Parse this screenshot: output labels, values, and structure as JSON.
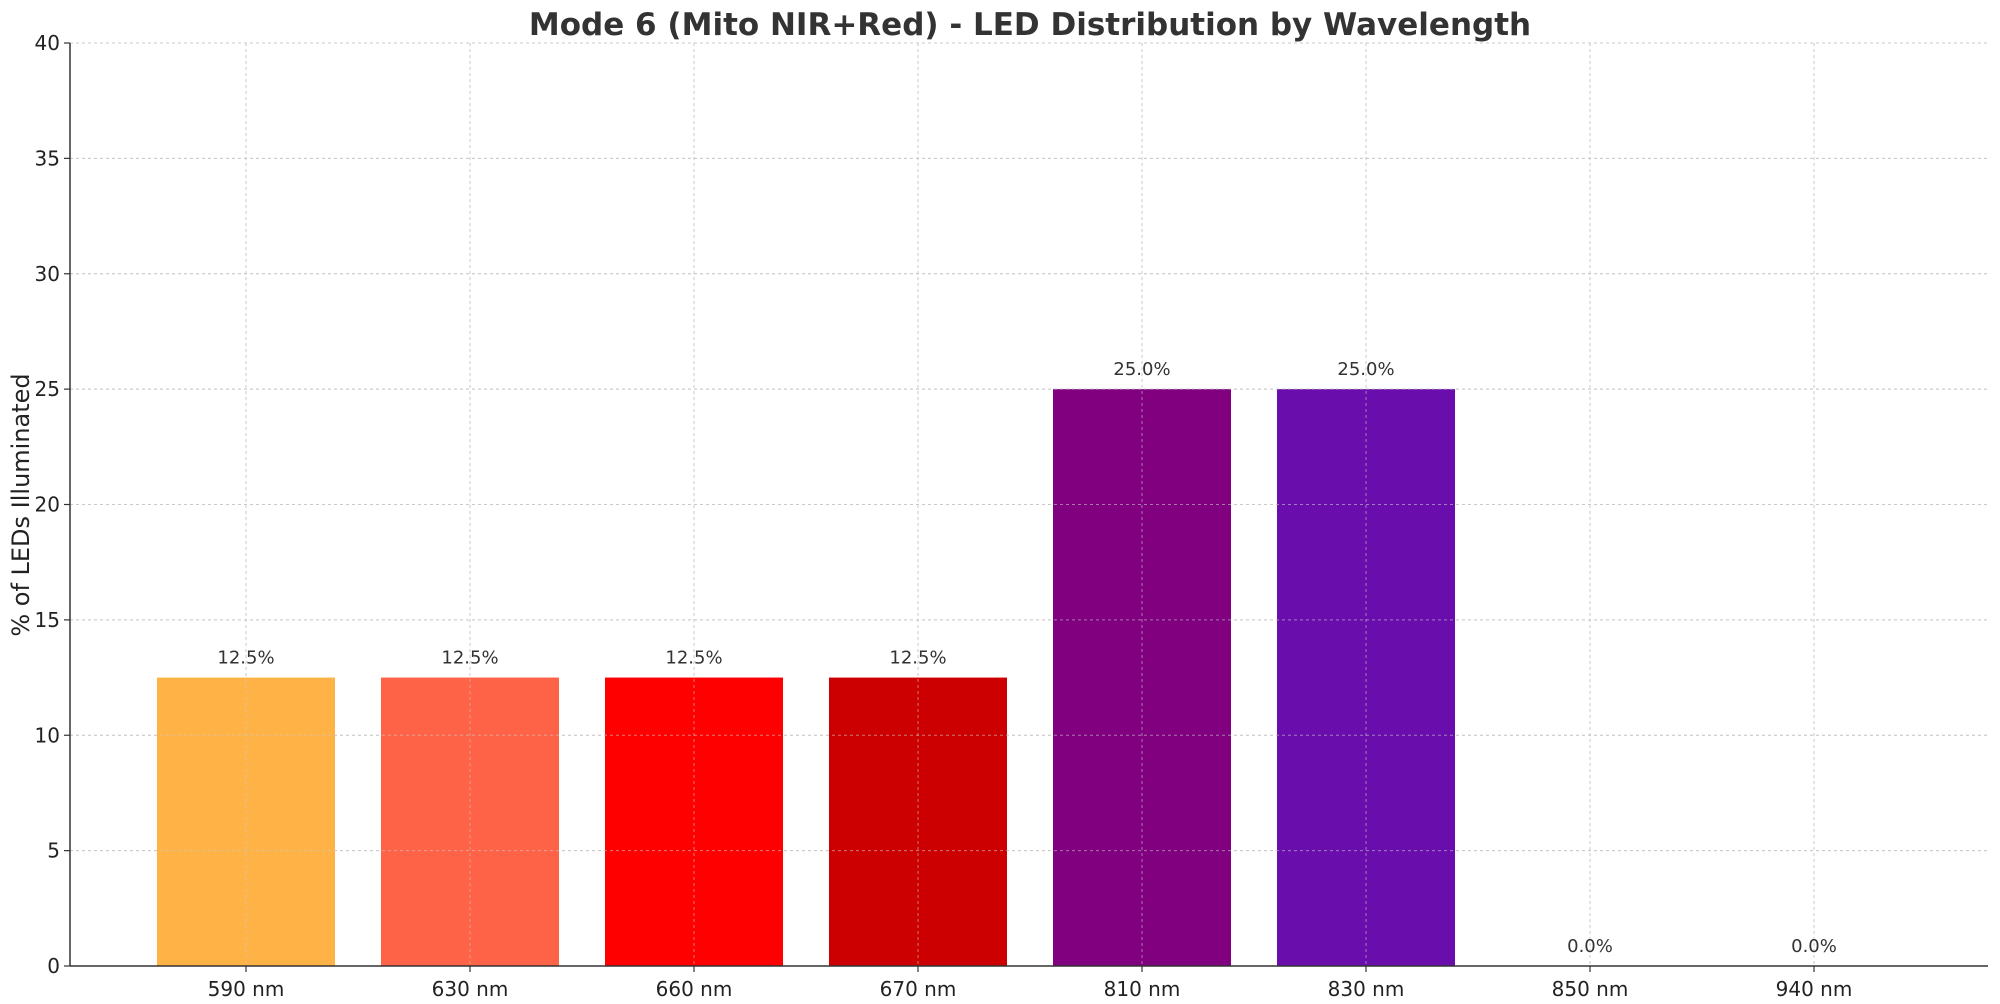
{
  "chart_data": {
    "type": "bar",
    "title": "Mode 6 (Mito NIR+Red) - LED Distribution by Wavelength",
    "xlabel": "",
    "ylabel": "% of LEDs Illuminated",
    "categories": [
      "590 nm",
      "630 nm",
      "660 nm",
      "670 nm",
      "810 nm",
      "830 nm",
      "850 nm",
      "940 nm"
    ],
    "values": [
      12.5,
      12.5,
      12.5,
      12.5,
      25.0,
      25.0,
      0.0,
      0.0
    ],
    "data_labels": [
      "12.5%",
      "12.5%",
      "12.5%",
      "12.5%",
      "25.0%",
      "25.0%",
      "0.0%",
      "0.0%"
    ],
    "colors": [
      "#FFB347",
      "#FF6347",
      "#FF0000",
      "#CC0000",
      "#800080",
      "#6A0DAD",
      "#4B0082",
      "#2F004F"
    ],
    "ylim": [
      0,
      40
    ],
    "yticks": [
      0,
      5,
      10,
      15,
      20,
      25,
      30,
      35,
      40
    ],
    "grid": true,
    "legend": "none"
  }
}
